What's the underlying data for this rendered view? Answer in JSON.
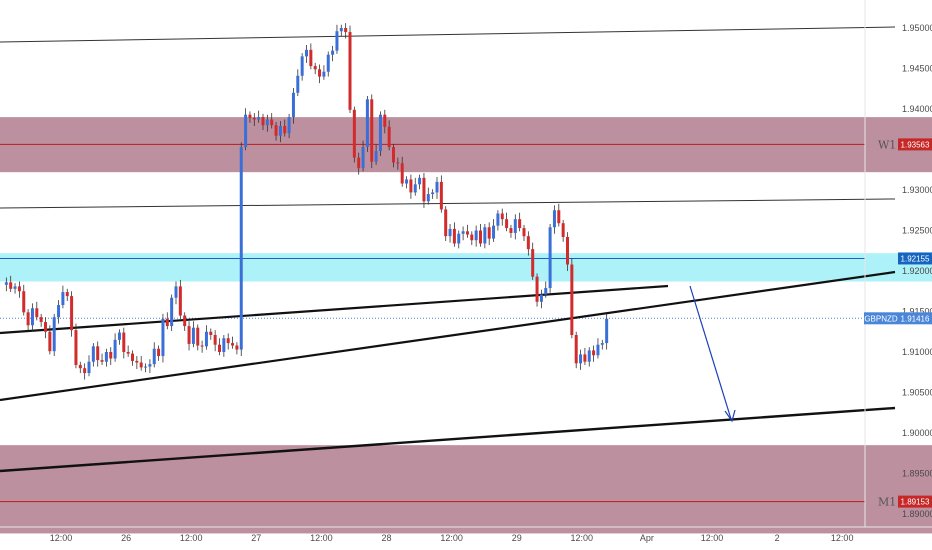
{
  "chart_data": {
    "type": "candlestick",
    "symbol": "GBPNZD",
    "y_ticks": [
      "1.95000",
      "1.94500",
      "1.94000",
      "1.93000",
      "1.92500",
      "1.92000",
      "1.91500",
      "1.91000",
      "1.90500",
      "1.90000",
      "1.89500",
      "1.89000"
    ],
    "x_ticks": [
      "12:00",
      "26",
      "12:00",
      "27",
      "12:00",
      "28",
      "12:00",
      "29",
      "12:00",
      "Apr",
      "12:00",
      "2",
      "12:00"
    ],
    "ylim": [
      1.8875,
      1.9537
    ],
    "zones": [
      {
        "name": "W1",
        "from": 1.9322,
        "to": 1.939,
        "level": 1.93563,
        "level_label": "1.93563",
        "color": "#b98a9a"
      },
      {
        "name": "",
        "from": 1.9187,
        "to": 1.9222,
        "level": 1.92155,
        "level_label": "1.92155",
        "color": "#9ff0f7"
      },
      {
        "name": "M1",
        "from": 1.8876,
        "to": 1.8985,
        "level": 1.89153,
        "level_label": "1.89153",
        "color": "#b98a9a"
      }
    ],
    "price_tags": [
      {
        "label": "W1",
        "value": "1.93563",
        "color": "#c62828"
      },
      {
        "label": "",
        "value": "1.92155",
        "color": "#1565c0"
      },
      {
        "label": "GBPNZD",
        "value": "1.91416",
        "color": "#4a86d8"
      },
      {
        "label": "M1",
        "value": "1.89153",
        "color": "#c62828"
      }
    ],
    "current_price": 1.91416,
    "candle_colors": {
      "up": "#3a6fd8",
      "down": "#d12b2b"
    },
    "closes": [
      1.9183,
      1.9186,
      1.9178,
      1.9181,
      1.9175,
      1.9149,
      1.9133,
      1.9154,
      1.9143,
      1.9137,
      1.9125,
      1.9101,
      1.9143,
      1.9158,
      1.9174,
      1.9169,
      1.9127,
      1.9084,
      1.908,
      1.9074,
      1.9088,
      1.9107,
      1.909,
      1.9088,
      1.91,
      1.9092,
      1.9115,
      1.9124,
      1.91,
      1.9098,
      1.9089,
      1.9087,
      1.9081,
      1.9082,
      1.9085,
      1.9104,
      1.9095,
      1.9141,
      1.9132,
      1.9167,
      1.9181,
      1.9145,
      1.9132,
      1.911,
      1.913,
      1.9108,
      1.9107,
      1.9125,
      1.9121,
      1.9109,
      1.91,
      1.9117,
      1.9111,
      1.9108,
      1.9103,
      1.9353,
      1.9393,
      1.9389,
      1.9387,
      1.939,
      1.938,
      1.9387,
      1.938,
      1.9367,
      1.9379,
      1.937,
      1.939,
      1.942,
      1.9441,
      1.9465,
      1.9473,
      1.9453,
      1.9449,
      1.944,
      1.9446,
      1.9467,
      1.9472,
      1.9496,
      1.95,
      1.9495,
      1.9399,
      1.934,
      1.9327,
      1.9353,
      1.9412,
      1.9335,
      1.9348,
      1.9393,
      1.9378,
      1.9353,
      1.9334,
      1.9333,
      1.9308,
      1.9313,
      1.9297,
      1.9307,
      1.9315,
      1.9286,
      1.9295,
      1.9297,
      1.931,
      1.9276,
      1.9243,
      1.9252,
      1.9234,
      1.9246,
      1.9249,
      1.9245,
      1.9238,
      1.925,
      1.9234,
      1.9254,
      1.924,
      1.9256,
      1.9271,
      1.9264,
      1.9253,
      1.9247,
      1.9264,
      1.9253,
      1.9243,
      1.9227,
      1.9193,
      1.9162,
      1.9171,
      1.9179,
      1.9254,
      1.9275,
      1.9259,
      1.9242,
      1.9208,
      1.9121,
      1.9086,
      1.9097,
      1.9088,
      1.9102,
      1.9096,
      1.9109,
      1.9111,
      1.9141
    ]
  }
}
